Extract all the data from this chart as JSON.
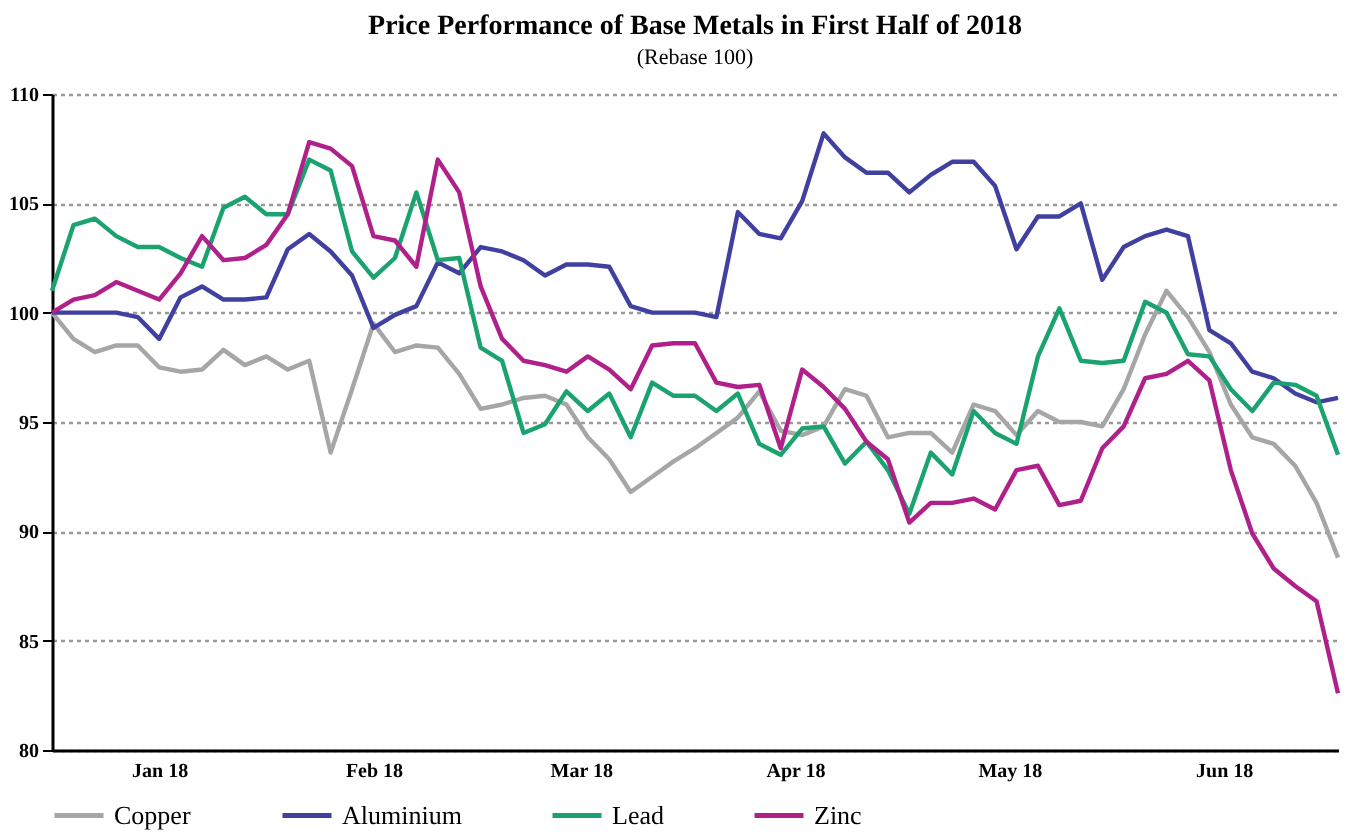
{
  "chart_data": {
    "type": "line",
    "title": "Price Performance of Base Metals in First Half of 2018",
    "subtitle": "(Rebase 100)",
    "x": [
      "2018-01-01",
      "2018-01-04",
      "2018-01-07",
      "2018-01-10",
      "2018-01-13",
      "2018-01-16",
      "2018-01-19",
      "2018-01-22",
      "2018-01-25",
      "2018-01-28",
      "2018-01-31",
      "2018-02-03",
      "2018-02-06",
      "2018-02-09",
      "2018-02-12",
      "2018-02-15",
      "2018-02-18",
      "2018-02-21",
      "2018-02-24",
      "2018-02-27",
      "2018-03-02",
      "2018-03-05",
      "2018-03-08",
      "2018-03-11",
      "2018-03-14",
      "2018-03-17",
      "2018-03-20",
      "2018-03-23",
      "2018-03-26",
      "2018-03-29",
      "2018-04-01",
      "2018-04-04",
      "2018-04-07",
      "2018-04-10",
      "2018-04-13",
      "2018-04-16",
      "2018-04-19",
      "2018-04-22",
      "2018-04-25",
      "2018-04-28",
      "2018-05-01",
      "2018-05-04",
      "2018-05-07",
      "2018-05-10",
      "2018-05-13",
      "2018-05-16",
      "2018-05-19",
      "2018-05-22",
      "2018-05-25",
      "2018-05-28",
      "2018-05-31",
      "2018-06-03",
      "2018-06-06",
      "2018-06-09",
      "2018-06-12",
      "2018-06-15",
      "2018-06-18",
      "2018-06-21",
      "2018-06-24",
      "2018-06-27",
      "2018-06-30"
    ],
    "series": [
      {
        "name": "Copper",
        "color": "#a6a6a6",
        "values": [
          100,
          98.8,
          98.2,
          98.5,
          98.5,
          97.5,
          97.3,
          97.4,
          98.3,
          97.6,
          98,
          97.4,
          97.8,
          93.6,
          96.5,
          99.5,
          98.2,
          98.5,
          98.4,
          97.2,
          95.6,
          95.8,
          96.1,
          96.2,
          95.8,
          94.3,
          93.3,
          91.8,
          92.5,
          93.2,
          93.8,
          94.5,
          95.2,
          96.4,
          94.6,
          94.4,
          94.8,
          96.5,
          96.2,
          94.3,
          94.5,
          94.5,
          93.6,
          95.8,
          95.5,
          94.4,
          95.5,
          95,
          95,
          94.8,
          96.5,
          99,
          101,
          99.8,
          98.2,
          95.8,
          94.3,
          94,
          93,
          91.3,
          88.8
        ]
      },
      {
        "name": "Aluminium",
        "color": "#4040a0",
        "values": [
          100,
          100,
          100,
          100,
          99.8,
          98.8,
          100.7,
          101.2,
          100.6,
          100.6,
          100.7,
          102.9,
          103.6,
          102.8,
          101.7,
          99.3,
          99.9,
          100.3,
          102.3,
          101.8,
          103,
          102.8,
          102.4,
          101.7,
          102.2,
          102.2,
          102.1,
          100.3,
          100,
          100,
          100,
          99.8,
          104.6,
          103.6,
          103.4,
          105.1,
          108.2,
          107.1,
          106.4,
          106.4,
          105.5,
          106.3,
          106.9,
          106.9,
          105.8,
          102.9,
          104.4,
          104.4,
          105,
          101.5,
          103,
          103.5,
          103.8,
          103.5,
          99.2,
          98.6,
          97.3,
          97,
          96.3,
          95.9,
          96.1
        ]
      },
      {
        "name": "Lead",
        "color": "#1aa36e",
        "values": [
          101,
          104,
          104.3,
          103.5,
          103,
          103,
          102.5,
          102.1,
          104.8,
          105.3,
          104.5,
          104.5,
          107,
          106.5,
          102.8,
          101.6,
          102.5,
          105.5,
          102.4,
          102.5,
          98.4,
          97.8,
          94.5,
          94.9,
          96.4,
          95.5,
          96.3,
          94.3,
          96.8,
          96.2,
          96.2,
          95.5,
          96.3,
          94,
          93.5,
          94.7,
          94.8,
          93.1,
          94.1,
          92.8,
          90.8,
          93.6,
          92.6,
          95.5,
          94.5,
          94,
          98,
          100.2,
          97.8,
          97.7,
          97.8,
          100.5,
          100,
          98.1,
          98,
          96.5,
          95.5,
          96.8,
          96.7,
          96.2,
          93.5
        ]
      },
      {
        "name": "Zinc",
        "color": "#b0208a",
        "values": [
          100,
          100.6,
          100.8,
          101.4,
          101,
          100.6,
          101.8,
          103.5,
          102.4,
          102.5,
          103.1,
          104.5,
          107.8,
          107.5,
          106.7,
          103.5,
          103.3,
          102.1,
          107,
          105.5,
          101.2,
          98.8,
          97.8,
          97.6,
          97.3,
          98,
          97.4,
          96.5,
          98.5,
          98.6,
          98.6,
          96.8,
          96.6,
          96.7,
          93.8,
          97.4,
          96.6,
          95.6,
          94.1,
          93.3,
          90.4,
          91.3,
          91.3,
          91.5,
          91,
          92.8,
          93,
          91.2,
          91.4,
          93.8,
          94.8,
          97,
          97.2,
          97.8,
          96.9,
          92.8,
          89.9,
          88.3,
          87.5,
          86.8,
          82.6
        ]
      }
    ],
    "xlim": [
      "2018-01-01",
      "2018-06-30"
    ],
    "xticks": [
      {
        "value": "2018-01-16",
        "label": "Jan 18"
      },
      {
        "value": "2018-02-15",
        "label": "Feb 18"
      },
      {
        "value": "2018-03-16",
        "label": "Mar 18"
      },
      {
        "value": "2018-04-15",
        "label": "Apr 18"
      },
      {
        "value": "2018-05-15",
        "label": "May 18"
      },
      {
        "value": "2018-06-14",
        "label": "Jun 18"
      }
    ],
    "ylim": [
      80,
      110
    ],
    "yticks": [
      80,
      85,
      90,
      95,
      100,
      105,
      110
    ],
    "grid": "y",
    "legend": "bottom"
  }
}
